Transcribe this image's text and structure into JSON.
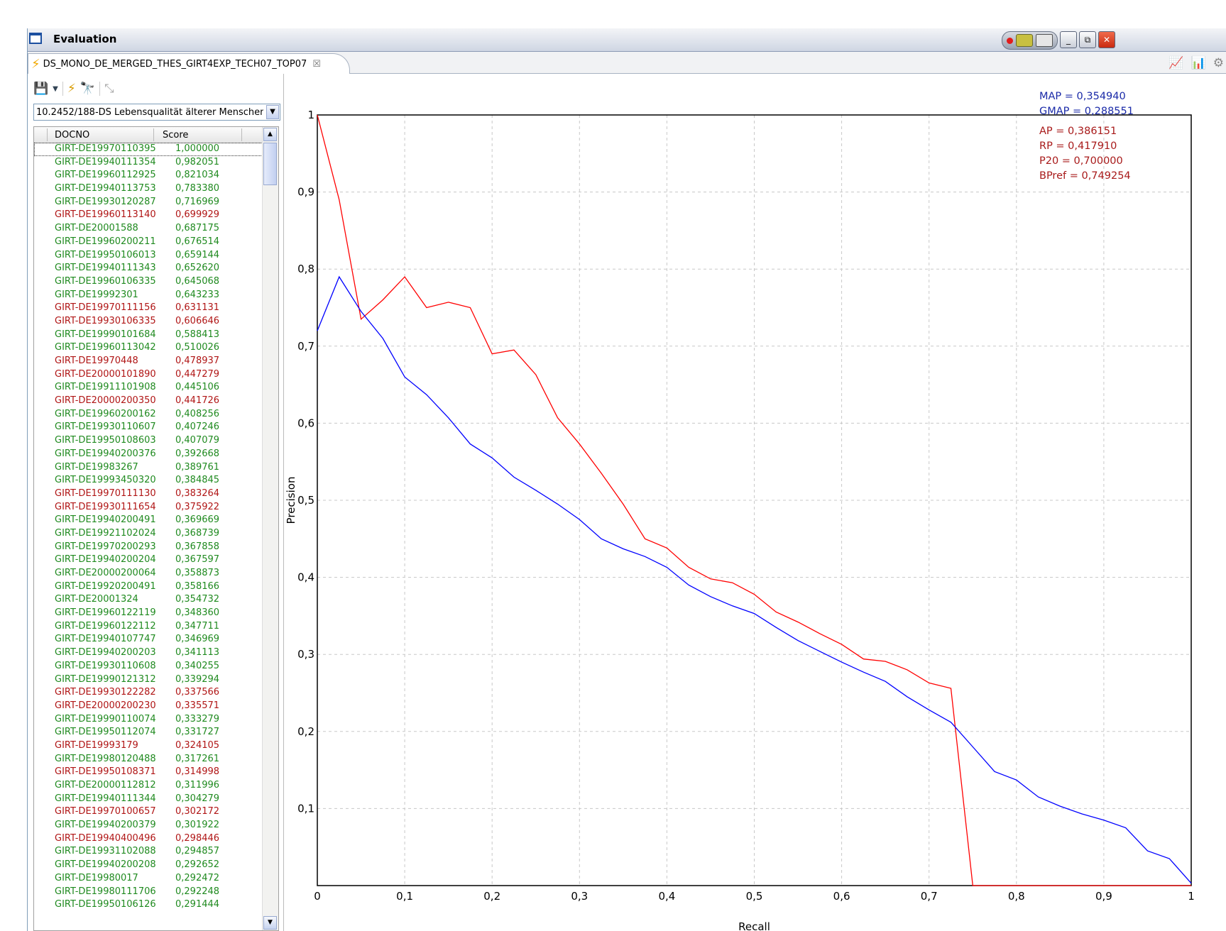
{
  "window": {
    "title": "Evaluation",
    "controls": {
      "minimize": "_",
      "restore": "⧉",
      "close": "✕"
    }
  },
  "tab": {
    "label": "DS_MONO_DE_MERGED_THES_GIRT4EXP_TECH07_TOP07",
    "close": "☒"
  },
  "icons": {
    "tab": "bolt-icon",
    "toolbar": [
      "save-icon",
      "dropdown-arrow-icon",
      "run-icon",
      "binoculars-icon",
      "collapse-icon"
    ],
    "view": [
      "line-chart-icon",
      "bar-chart-icon",
      "settings-icon"
    ]
  },
  "topic_select": {
    "value": "10.2452/188-DS Lebensqualität älterer Menschen"
  },
  "table": {
    "headers": [
      "DOCNO",
      "Score"
    ],
    "rows": [
      {
        "docno": "GIRT-DE19970110395",
        "score": "1,000000",
        "relevant": true
      },
      {
        "docno": "GIRT-DE19940111354",
        "score": "0,982051",
        "relevant": true
      },
      {
        "docno": "GIRT-DE19960112925",
        "score": "0,821034",
        "relevant": true
      },
      {
        "docno": "GIRT-DE19940113753",
        "score": "0,783380",
        "relevant": true
      },
      {
        "docno": "GIRT-DE19930120287",
        "score": "0,716969",
        "relevant": true
      },
      {
        "docno": "GIRT-DE19960113140",
        "score": "0,699929",
        "relevant": false
      },
      {
        "docno": "GIRT-DE20001588",
        "score": "0,687175",
        "relevant": true
      },
      {
        "docno": "GIRT-DE19960200211",
        "score": "0,676514",
        "relevant": true
      },
      {
        "docno": "GIRT-DE19950106013",
        "score": "0,659144",
        "relevant": true
      },
      {
        "docno": "GIRT-DE19940111343",
        "score": "0,652620",
        "relevant": true
      },
      {
        "docno": "GIRT-DE19960106335",
        "score": "0,645068",
        "relevant": true
      },
      {
        "docno": "GIRT-DE19992301",
        "score": "0,643233",
        "relevant": true
      },
      {
        "docno": "GIRT-DE19970111156",
        "score": "0,631131",
        "relevant": false
      },
      {
        "docno": "GIRT-DE19930106335",
        "score": "0,606646",
        "relevant": false
      },
      {
        "docno": "GIRT-DE19990101684",
        "score": "0,588413",
        "relevant": true
      },
      {
        "docno": "GIRT-DE19960113042",
        "score": "0,510026",
        "relevant": true
      },
      {
        "docno": "GIRT-DE19970448",
        "score": "0,478937",
        "relevant": false
      },
      {
        "docno": "GIRT-DE20000101890",
        "score": "0,447279",
        "relevant": false
      },
      {
        "docno": "GIRT-DE19911101908",
        "score": "0,445106",
        "relevant": true
      },
      {
        "docno": "GIRT-DE20000200350",
        "score": "0,441726",
        "relevant": false
      },
      {
        "docno": "GIRT-DE19960200162",
        "score": "0,408256",
        "relevant": true
      },
      {
        "docno": "GIRT-DE19930110607",
        "score": "0,407246",
        "relevant": true
      },
      {
        "docno": "GIRT-DE19950108603",
        "score": "0,407079",
        "relevant": true
      },
      {
        "docno": "GIRT-DE19940200376",
        "score": "0,392668",
        "relevant": true
      },
      {
        "docno": "GIRT-DE19983267",
        "score": "0,389761",
        "relevant": true
      },
      {
        "docno": "GIRT-DE19993450320",
        "score": "0,384845",
        "relevant": true
      },
      {
        "docno": "GIRT-DE19970111130",
        "score": "0,383264",
        "relevant": false
      },
      {
        "docno": "GIRT-DE19930111654",
        "score": "0,375922",
        "relevant": false
      },
      {
        "docno": "GIRT-DE19940200491",
        "score": "0,369669",
        "relevant": true
      },
      {
        "docno": "GIRT-DE19921102024",
        "score": "0,368739",
        "relevant": true
      },
      {
        "docno": "GIRT-DE19970200293",
        "score": "0,367858",
        "relevant": true
      },
      {
        "docno": "GIRT-DE19940200204",
        "score": "0,367597",
        "relevant": true
      },
      {
        "docno": "GIRT-DE20000200064",
        "score": "0,358873",
        "relevant": true
      },
      {
        "docno": "GIRT-DE19920200491",
        "score": "0,358166",
        "relevant": true
      },
      {
        "docno": "GIRT-DE20001324",
        "score": "0,354732",
        "relevant": true
      },
      {
        "docno": "GIRT-DE19960122119",
        "score": "0,348360",
        "relevant": true
      },
      {
        "docno": "GIRT-DE19960122112",
        "score": "0,347711",
        "relevant": true
      },
      {
        "docno": "GIRT-DE19940107747",
        "score": "0,346969",
        "relevant": true
      },
      {
        "docno": "GIRT-DE19940200203",
        "score": "0,341113",
        "relevant": true
      },
      {
        "docno": "GIRT-DE19930110608",
        "score": "0,340255",
        "relevant": true
      },
      {
        "docno": "GIRT-DE19990121312",
        "score": "0,339294",
        "relevant": true
      },
      {
        "docno": "GIRT-DE19930122282",
        "score": "0,337566",
        "relevant": false
      },
      {
        "docno": "GIRT-DE20000200230",
        "score": "0,335571",
        "relevant": false
      },
      {
        "docno": "GIRT-DE19990110074",
        "score": "0,333279",
        "relevant": true
      },
      {
        "docno": "GIRT-DE19950112074",
        "score": "0,331727",
        "relevant": true
      },
      {
        "docno": "GIRT-DE19993179",
        "score": "0,324105",
        "relevant": false
      },
      {
        "docno": "GIRT-DE19980120488",
        "score": "0,317261",
        "relevant": true
      },
      {
        "docno": "GIRT-DE19950108371",
        "score": "0,314998",
        "relevant": false
      },
      {
        "docno": "GIRT-DE20000112812",
        "score": "0,311996",
        "relevant": true
      },
      {
        "docno": "GIRT-DE19940111344",
        "score": "0,304279",
        "relevant": true
      },
      {
        "docno": "GIRT-DE19970100657",
        "score": "0,302172",
        "relevant": false
      },
      {
        "docno": "GIRT-DE19940200379",
        "score": "0,301922",
        "relevant": true
      },
      {
        "docno": "GIRT-DE19940400496",
        "score": "0,298446",
        "relevant": false
      },
      {
        "docno": "GIRT-DE19931102088",
        "score": "0,294857",
        "relevant": true
      },
      {
        "docno": "GIRT-DE19940200208",
        "score": "0,292652",
        "relevant": true
      },
      {
        "docno": "GIRT-DE19980017",
        "score": "0,292472",
        "relevant": true
      },
      {
        "docno": "GIRT-DE19980111706",
        "score": "0,292248",
        "relevant": true
      },
      {
        "docno": "GIRT-DE19950106126",
        "score": "0,291444",
        "relevant": true
      }
    ]
  },
  "metrics": {
    "map": "MAP = 0,354940",
    "gmap": "GMAP = 0,288551",
    "ap": "AP = 0,386151",
    "rp": "RP = 0,417910",
    "p20": "P20 = 0,700000",
    "bpref": "BPref = 0,749254"
  },
  "colors": {
    "relevant": "#1f8a1f",
    "nonrelevant": "#b01515",
    "topic_series": "#ff0000",
    "mean_series": "#0000ff",
    "metric_blue": "#1a2aa8",
    "metric_red": "#a81a1a"
  },
  "chart_data": {
    "type": "line",
    "xlabel": "Recall",
    "ylabel": "Precision",
    "xlim": [
      0,
      1
    ],
    "ylim": [
      0,
      1
    ],
    "grid": true,
    "xticks": [
      "0",
      "0,1",
      "0,2",
      "0,3",
      "0,4",
      "0,5",
      "0,6",
      "0,7",
      "0,8",
      "0,9",
      "1"
    ],
    "yticks": [
      "0,1",
      "0,2",
      "0,3",
      "0,4",
      "0,5",
      "0,6",
      "0,7",
      "0,8",
      "0,9",
      "1"
    ],
    "series": [
      {
        "color": "#ff0000",
        "points": [
          [
            0,
            1.0
          ],
          [
            0.025,
            0.89
          ],
          [
            0.05,
            0.735
          ],
          [
            0.075,
            0.76
          ],
          [
            0.1,
            0.79
          ],
          [
            0.125,
            0.75
          ],
          [
            0.15,
            0.757
          ],
          [
            0.175,
            0.75
          ],
          [
            0.2,
            0.69
          ],
          [
            0.225,
            0.695
          ],
          [
            0.25,
            0.663
          ],
          [
            0.275,
            0.607
          ],
          [
            0.3,
            0.573
          ],
          [
            0.325,
            0.535
          ],
          [
            0.35,
            0.495
          ],
          [
            0.375,
            0.45
          ],
          [
            0.4,
            0.438
          ],
          [
            0.425,
            0.413
          ],
          [
            0.45,
            0.398
          ],
          [
            0.475,
            0.393
          ],
          [
            0.5,
            0.378
          ],
          [
            0.525,
            0.355
          ],
          [
            0.55,
            0.342
          ],
          [
            0.575,
            0.327
          ],
          [
            0.6,
            0.313
          ],
          [
            0.625,
            0.294
          ],
          [
            0.65,
            0.291
          ],
          [
            0.675,
            0.28
          ],
          [
            0.7,
            0.263
          ],
          [
            0.725,
            0.256
          ],
          [
            0.75,
            0.0
          ],
          [
            1.0,
            0.0
          ]
        ]
      },
      {
        "color": "#0000ff",
        "points": [
          [
            0,
            0.72
          ],
          [
            0.025,
            0.79
          ],
          [
            0.05,
            0.745
          ],
          [
            0.075,
            0.71
          ],
          [
            0.1,
            0.66
          ],
          [
            0.125,
            0.637
          ],
          [
            0.15,
            0.607
          ],
          [
            0.175,
            0.573
          ],
          [
            0.2,
            0.555
          ],
          [
            0.225,
            0.53
          ],
          [
            0.25,
            0.513
          ],
          [
            0.275,
            0.495
          ],
          [
            0.3,
            0.475
          ],
          [
            0.325,
            0.45
          ],
          [
            0.35,
            0.437
          ],
          [
            0.375,
            0.427
          ],
          [
            0.4,
            0.413
          ],
          [
            0.425,
            0.39
          ],
          [
            0.45,
            0.375
          ],
          [
            0.475,
            0.363
          ],
          [
            0.5,
            0.353
          ],
          [
            0.525,
            0.335
          ],
          [
            0.55,
            0.318
          ],
          [
            0.575,
            0.304
          ],
          [
            0.6,
            0.29
          ],
          [
            0.625,
            0.277
          ],
          [
            0.65,
            0.265
          ],
          [
            0.675,
            0.245
          ],
          [
            0.7,
            0.228
          ],
          [
            0.725,
            0.212
          ],
          [
            0.75,
            0.18
          ],
          [
            0.775,
            0.148
          ],
          [
            0.8,
            0.137
          ],
          [
            0.825,
            0.115
          ],
          [
            0.85,
            0.103
          ],
          [
            0.875,
            0.093
          ],
          [
            0.9,
            0.085
          ],
          [
            0.925,
            0.075
          ],
          [
            0.95,
            0.045
          ],
          [
            0.975,
            0.035
          ],
          [
            1.0,
            0.003
          ]
        ]
      }
    ]
  }
}
